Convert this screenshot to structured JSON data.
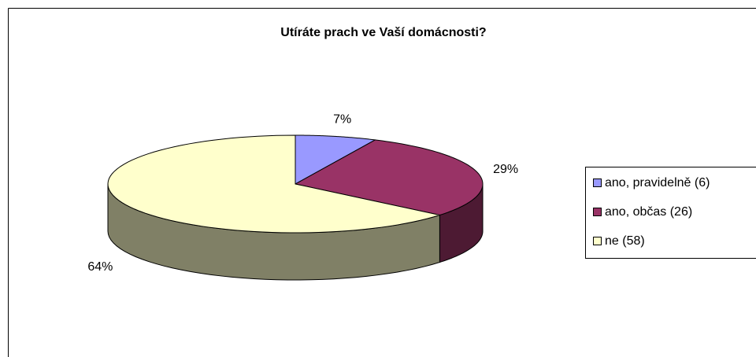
{
  "chart_data": {
    "type": "pie",
    "title": "Utíráte prach ve Vaší domácnosti?",
    "categories": [
      "ano, pravidelně (6)",
      "ano, občas (26)",
      "ne (58)"
    ],
    "values": [
      7,
      29,
      64
    ],
    "value_labels": [
      "7%",
      "29%",
      "64%"
    ],
    "colors": [
      "#9999ff",
      "#993366",
      "#ffffcc"
    ],
    "side_colors": [
      "#4d4d80",
      "#4d1a33",
      "#808066"
    ],
    "legend": "right"
  }
}
